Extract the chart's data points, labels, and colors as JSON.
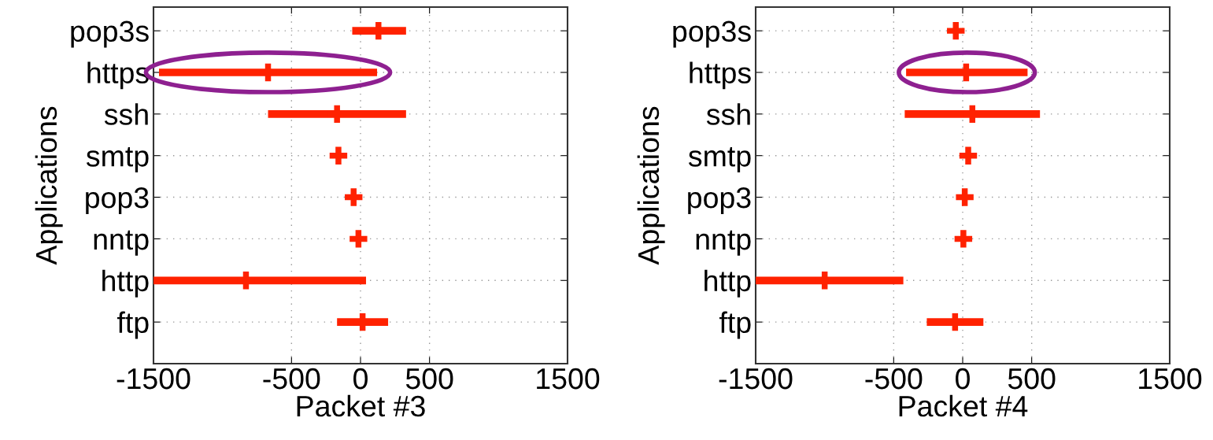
{
  "chart_data": [
    {
      "type": "scatter",
      "orientation": "horizontal",
      "xlabel": "Packet #3",
      "ylabel": "Applications",
      "categories": [
        "pop3s",
        "https",
        "ssh",
        "smtp",
        "pop3",
        "nntp",
        "http",
        "ftp"
      ],
      "values": [
        130,
        -670,
        -170,
        -160,
        -50,
        -15,
        -830,
        15
      ],
      "errors": [
        [
          -60,
          330
        ],
        [
          -1460,
          120
        ],
        [
          -670,
          330
        ],
        null,
        null,
        null,
        [
          -1500,
          40
        ],
        [
          -170,
          200
        ]
      ],
      "color": "#ff2200",
      "marker": "cross",
      "xlim": [
        -1500,
        1500
      ],
      "xticks": [
        -1500,
        -500,
        0,
        500,
        1500
      ],
      "grid": true
    },
    {
      "type": "scatter",
      "orientation": "horizontal",
      "xlabel": "Packet #4",
      "ylabel": "Applications",
      "categories": [
        "pop3s",
        "https",
        "ssh",
        "smtp",
        "pop3",
        "nntp",
        "http",
        "ftp"
      ],
      "values": [
        -50,
        25,
        70,
        40,
        15,
        5,
        -1000,
        -55
      ],
      "errors": [
        null,
        [
          -410,
          470
        ],
        [
          -420,
          560
        ],
        null,
        null,
        null,
        [
          -1500,
          -430
        ],
        [
          -260,
          150
        ]
      ],
      "color": "#ff2200",
      "marker": "cross",
      "xlim": [
        -1500,
        1500
      ],
      "xticks": [
        -1500,
        -500,
        0,
        500,
        1500
      ],
      "grid": true
    }
  ]
}
